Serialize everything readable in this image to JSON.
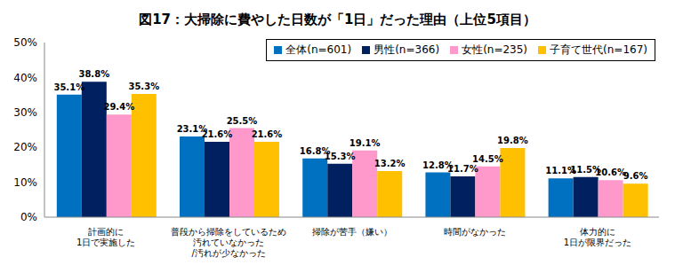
{
  "chart_data": {
    "type": "bar",
    "title": "図17：大掃除に費やした日数が「1日」だった理由（上位5項目）",
    "categories": [
      "計画的に\n1日で実施した",
      "普段から掃除をしているため\n汚れていなかった\n/汚れが少なかった",
      "掃除が苦手（嫌い）",
      "時間がなかった",
      "体力的に\n1日が限界だった"
    ],
    "series": [
      {
        "name": "全体(n=601)",
        "color": "#0070C0",
        "values": [
          35.1,
          23.1,
          16.8,
          12.8,
          11.1
        ],
        "value_labels": [
          "35.1%",
          "23.1%",
          "16.8%",
          "12.8%",
          "11.1%"
        ]
      },
      {
        "name": "男性(n=366)",
        "color": "#002060",
        "values": [
          38.8,
          21.6,
          15.3,
          11.7,
          11.5
        ],
        "value_labels": [
          "38.8%",
          "21.6%",
          "15.3%",
          "11.7%",
          "11.5%"
        ]
      },
      {
        "name": "女性(n=235)",
        "color": "#FF99CC",
        "values": [
          29.4,
          25.5,
          19.1,
          14.5,
          10.6
        ],
        "value_labels": [
          "29.4%",
          "25.5%",
          "19.1%",
          "14.5%",
          "10.6%"
        ]
      },
      {
        "name": "子育て世代(n=167)",
        "color": "#FFC000",
        "values": [
          35.3,
          21.6,
          13.2,
          19.8,
          9.6
        ],
        "value_labels": [
          "35.3%",
          "21.6%",
          "13.2%",
          "19.8%",
          "9.6%"
        ]
      }
    ],
    "ylim": [
      0,
      50
    ],
    "yticks": [
      {
        "value": 0,
        "label": "0%"
      },
      {
        "value": 10,
        "label": "10%"
      },
      {
        "value": 20,
        "label": "20%"
      },
      {
        "value": 30,
        "label": "30%"
      },
      {
        "value": 40,
        "label": "40%"
      },
      {
        "value": 50,
        "label": "50%"
      }
    ],
    "grid": false,
    "legend": "top-right",
    "data_labels": true
  }
}
